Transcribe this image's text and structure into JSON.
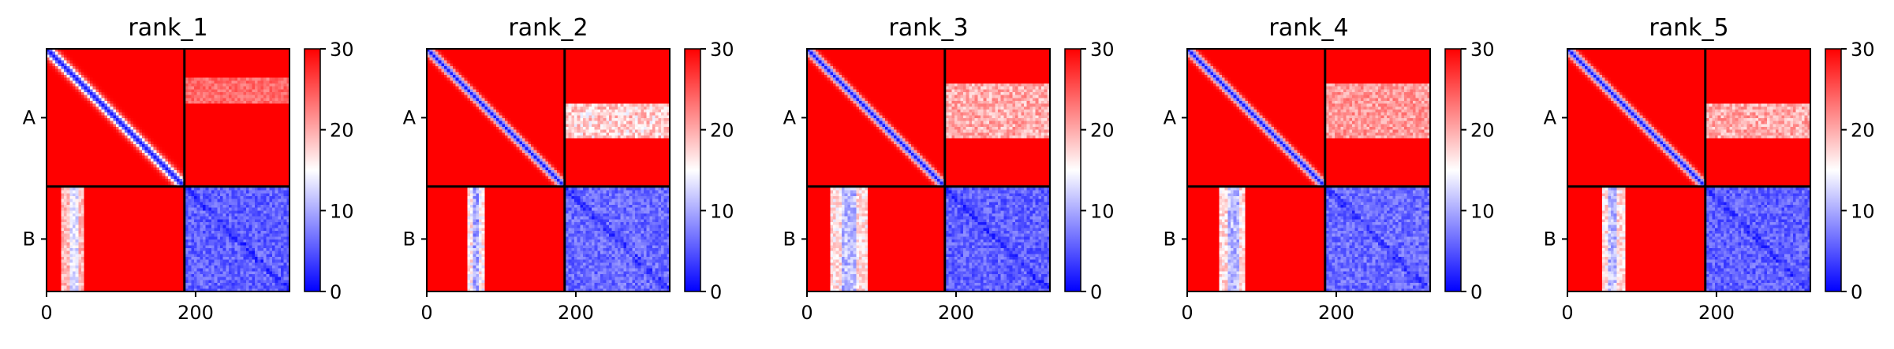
{
  "chart_data": [
    {
      "type": "heatmap",
      "title": "rank_1",
      "yticklabels": [
        "A",
        "B"
      ],
      "xticklabels": [
        "0",
        "200"
      ],
      "xticks": [
        0,
        200
      ],
      "xlim": [
        0,
        326
      ],
      "chain_boundary": 185,
      "colorbar": {
        "ticks": [
          "0",
          "10",
          "20",
          "30"
        ],
        "tick_values": [
          0,
          10,
          20,
          30
        ],
        "range": [
          0,
          30
        ]
      },
      "colormap": [
        "#0000ff",
        "#ffffff",
        "#ff0000"
      ],
      "patterns": {
        "diag_width": 0.02,
        "ab_band": [
          0.3,
          0.09,
          0.28
        ],
        "ba_band": [
          0.19,
          0.08,
          0.45
        ],
        "bb_base": 0.1
      }
    },
    {
      "type": "heatmap",
      "title": "rank_2",
      "yticklabels": [
        "A",
        "B"
      ],
      "xticklabels": [
        "0",
        "200"
      ],
      "xticks": [
        0,
        200
      ],
      "xlim": [
        0,
        326
      ],
      "chain_boundary": 185,
      "colorbar": {
        "ticks": [
          "0",
          "10",
          "20",
          "30"
        ],
        "tick_values": [
          0,
          10,
          20,
          30
        ],
        "range": [
          0,
          30
        ]
      },
      "colormap": [
        "#0000ff",
        "#ffffff",
        "#ff0000"
      ],
      "patterns": {
        "diag_width": 0.016,
        "ab_band": [
          0.52,
          0.13,
          0.55
        ],
        "ba_band": [
          0.35,
          0.06,
          0.6
        ],
        "bb_base": 0.12
      }
    },
    {
      "type": "heatmap",
      "title": "rank_3",
      "yticklabels": [
        "A",
        "B"
      ],
      "xticklabels": [
        "0",
        "200"
      ],
      "xticks": [
        0,
        200
      ],
      "xlim": [
        0,
        326
      ],
      "chain_boundary": 185,
      "colorbar": {
        "ticks": [
          "0",
          "10",
          "20",
          "30"
        ],
        "tick_values": [
          0,
          10,
          20,
          30
        ],
        "range": [
          0,
          30
        ]
      },
      "colormap": [
        "#0000ff",
        "#ffffff",
        "#ff0000"
      ],
      "patterns": {
        "diag_width": 0.016,
        "ab_band": [
          0.45,
          0.2,
          0.45
        ],
        "ba_band": [
          0.3,
          0.14,
          0.55
        ],
        "bb_base": 0.1
      }
    },
    {
      "type": "heatmap",
      "title": "rank_4",
      "yticklabels": [
        "A",
        "B"
      ],
      "xticklabels": [
        "0",
        "200"
      ],
      "xticks": [
        0,
        200
      ],
      "xlim": [
        0,
        326
      ],
      "chain_boundary": 185,
      "colorbar": {
        "ticks": [
          "0",
          "10",
          "20",
          "30"
        ],
        "tick_values": [
          0,
          10,
          20,
          30
        ],
        "range": [
          0,
          30
        ]
      },
      "colormap": [
        "#0000ff",
        "#ffffff",
        "#ff0000"
      ],
      "patterns": {
        "diag_width": 0.016,
        "ab_band": [
          0.45,
          0.2,
          0.4
        ],
        "ba_band": [
          0.33,
          0.1,
          0.55
        ],
        "bb_base": 0.12
      }
    },
    {
      "type": "heatmap",
      "title": "rank_5",
      "yticklabels": [
        "A",
        "B"
      ],
      "xticklabels": [
        "0",
        "200"
      ],
      "xticks": [
        0,
        200
      ],
      "xlim": [
        0,
        326
      ],
      "chain_boundary": 185,
      "colorbar": {
        "ticks": [
          "0",
          "10",
          "20",
          "30"
        ],
        "tick_values": [
          0,
          10,
          20,
          30
        ],
        "range": [
          0,
          30
        ]
      },
      "colormap": [
        "#0000ff",
        "#ffffff",
        "#ff0000"
      ],
      "patterns": {
        "diag_width": 0.016,
        "ab_band": [
          0.52,
          0.12,
          0.45
        ],
        "ba_band": [
          0.33,
          0.08,
          0.55
        ],
        "bb_base": 0.1
      }
    }
  ]
}
